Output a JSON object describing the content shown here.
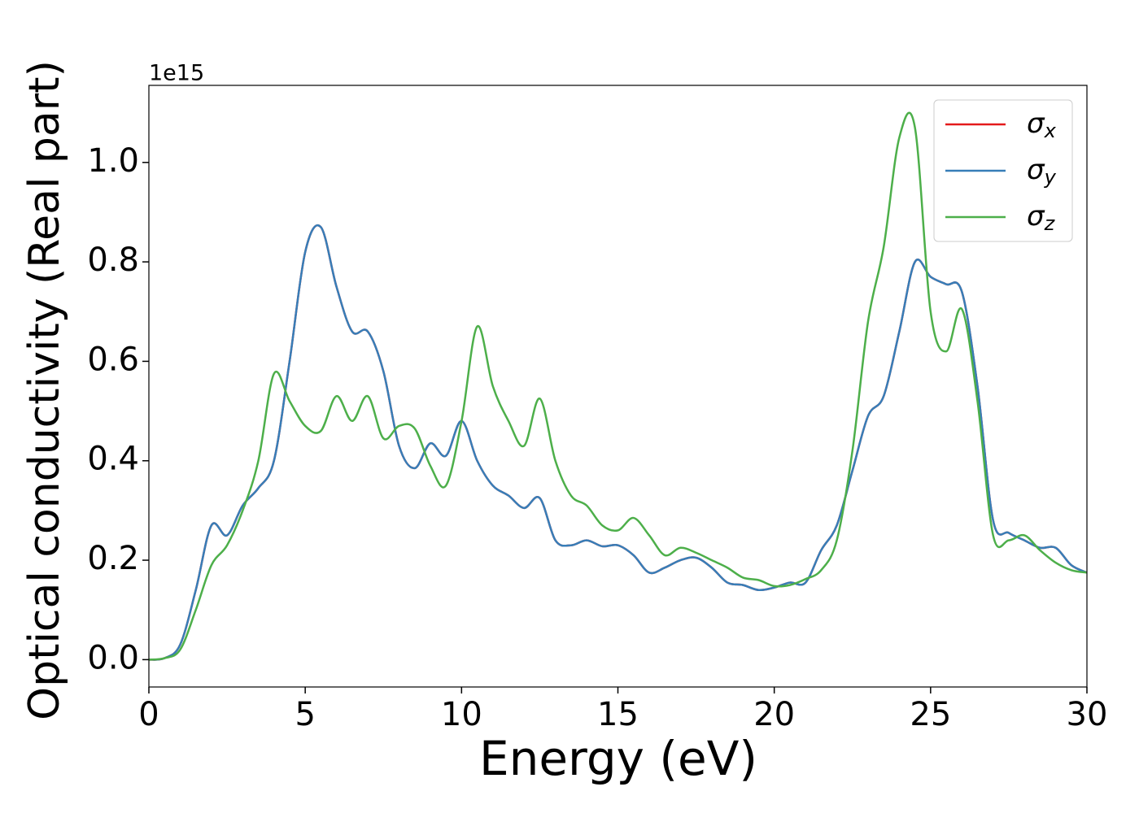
{
  "chart_data": {
    "type": "line",
    "xlabel": "Energy (eV)",
    "ylabel": "Optical conductivity (Real part)",
    "y_offset_label": "1e15",
    "x": [
      0,
      0.5,
      1,
      1.5,
      2,
      2.5,
      3,
      3.5,
      4,
      4.5,
      5,
      5.5,
      6,
      6.5,
      7,
      7.5,
      8,
      8.5,
      9,
      9.5,
      10,
      10.5,
      11,
      11.5,
      12,
      12.5,
      13,
      13.5,
      14,
      14.5,
      15,
      15.5,
      16,
      16.5,
      17,
      17.5,
      18,
      18.5,
      19,
      19.5,
      20,
      20.5,
      21,
      21.5,
      22,
      22.5,
      23,
      23.5,
      24,
      24.5,
      25,
      25.5,
      26,
      26.5,
      27,
      27.5,
      28,
      28.5,
      29,
      29.5,
      30
    ],
    "series": [
      {
        "name": "σx",
        "color": "#e41a1c",
        "values": [
          0,
          0.003,
          0.03,
          0.14,
          0.27,
          0.25,
          0.31,
          0.345,
          0.4,
          0.6,
          0.82,
          0.87,
          0.75,
          0.66,
          0.66,
          0.58,
          0.43,
          0.385,
          0.435,
          0.41,
          0.48,
          0.4,
          0.35,
          0.33,
          0.305,
          0.325,
          0.24,
          0.23,
          0.24,
          0.228,
          0.23,
          0.21,
          0.175,
          0.185,
          0.2,
          0.205,
          0.185,
          0.155,
          0.15,
          0.14,
          0.145,
          0.155,
          0.155,
          0.22,
          0.27,
          0.38,
          0.49,
          0.53,
          0.66,
          0.8,
          0.77,
          0.755,
          0.74,
          0.55,
          0.28,
          0.255,
          0.24,
          0.225,
          0.225,
          0.19,
          0.175
        ]
      },
      {
        "name": "σy",
        "color": "#377eb8",
        "values": [
          0,
          0.003,
          0.03,
          0.14,
          0.27,
          0.25,
          0.31,
          0.345,
          0.4,
          0.6,
          0.82,
          0.87,
          0.75,
          0.66,
          0.66,
          0.58,
          0.43,
          0.385,
          0.435,
          0.41,
          0.48,
          0.4,
          0.35,
          0.33,
          0.305,
          0.325,
          0.24,
          0.23,
          0.24,
          0.228,
          0.23,
          0.21,
          0.175,
          0.185,
          0.2,
          0.205,
          0.185,
          0.155,
          0.15,
          0.14,
          0.145,
          0.155,
          0.155,
          0.22,
          0.27,
          0.38,
          0.49,
          0.53,
          0.66,
          0.8,
          0.77,
          0.755,
          0.74,
          0.55,
          0.28,
          0.255,
          0.24,
          0.225,
          0.225,
          0.19,
          0.175
        ]
      },
      {
        "name": "σz",
        "color": "#4daf4a",
        "values": [
          0,
          0.003,
          0.02,
          0.1,
          0.19,
          0.23,
          0.3,
          0.4,
          0.575,
          0.52,
          0.47,
          0.46,
          0.53,
          0.48,
          0.53,
          0.445,
          0.47,
          0.465,
          0.39,
          0.35,
          0.48,
          0.67,
          0.55,
          0.48,
          0.43,
          0.525,
          0.4,
          0.33,
          0.31,
          0.27,
          0.26,
          0.285,
          0.25,
          0.21,
          0.225,
          0.215,
          0.2,
          0.185,
          0.165,
          0.16,
          0.148,
          0.15,
          0.162,
          0.18,
          0.24,
          0.42,
          0.68,
          0.83,
          1.05,
          1.07,
          0.7,
          0.62,
          0.705,
          0.52,
          0.25,
          0.24,
          0.25,
          0.22,
          0.195,
          0.18,
          0.175
        ]
      }
    ],
    "xlim": [
      0,
      30
    ],
    "xticks": [
      0,
      5,
      10,
      15,
      20,
      25,
      30
    ],
    "ylim": [
      -0.055,
      1.155
    ],
    "yticks": [
      {
        "value": 0,
        "label": "0.0"
      },
      0.2,
      0.4,
      0.6,
      0.8,
      {
        "value": 1,
        "label": "1.0"
      }
    ],
    "grid": false,
    "legend": "upper right"
  }
}
